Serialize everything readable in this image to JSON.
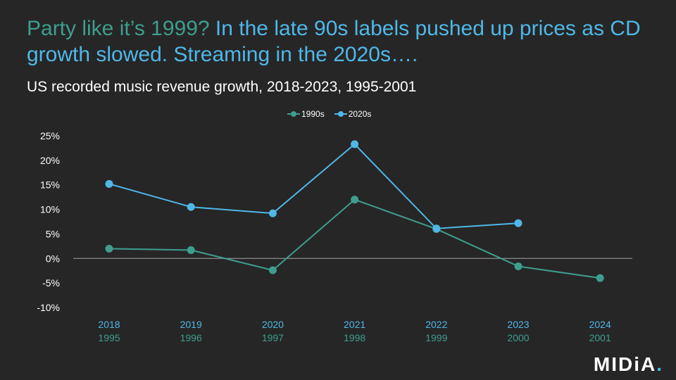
{
  "headline": {
    "lead": "Party like it’s 1999?",
    "rest": " In the late 90s labels pushed up prices as CD growth slowed. Streaming in the 2020s…."
  },
  "chart_data": {
    "type": "line",
    "subtitle": "US recorded music revenue growth, 2018-2023, 1995-2001",
    "categories": [
      "2018",
      "2019",
      "2020",
      "2021",
      "2022",
      "2023",
      "2024"
    ],
    "categories_secondary": [
      "1995",
      "1996",
      "1997",
      "1998",
      "1999",
      "2000",
      "2001"
    ],
    "series": [
      {
        "name": "1990s",
        "color": "#3E9E8E",
        "values": [
          2,
          1.7,
          -2.4,
          12,
          6,
          -1.6,
          -4
        ]
      },
      {
        "name": "2020s",
        "color": "#4FB8E8",
        "values": [
          15.2,
          10.5,
          9.2,
          23.3,
          6.1,
          7.2,
          null
        ]
      }
    ],
    "ylim": [
      -10,
      25
    ],
    "yticks": [
      25,
      20,
      15,
      10,
      5,
      0,
      -5,
      -10
    ],
    "ytick_labels": [
      "25%",
      "20%",
      "15%",
      "10%",
      "5%",
      "0%",
      "-5%",
      "-10%"
    ],
    "legend_position": "top-center",
    "grid": false
  },
  "logo": {
    "text": "MIDiA",
    "dot": "."
  }
}
